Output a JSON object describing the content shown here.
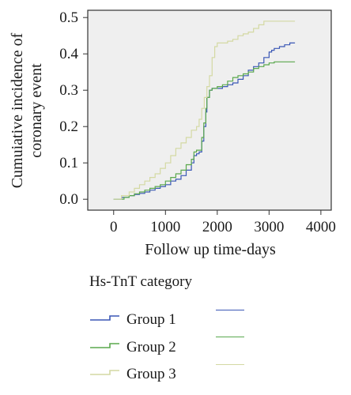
{
  "chart_data": {
    "type": "line",
    "xlabel": "Follow up time-days",
    "ylabel_lines": [
      "Cumuiative incidence of",
      "coronary event"
    ],
    "xlim": [
      -500,
      4200
    ],
    "ylim": [
      -0.03,
      0.52
    ],
    "xticks": [
      0,
      1000,
      2000,
      3000,
      4000
    ],
    "yticks": [
      0.0,
      0.1,
      0.2,
      0.3,
      0.4,
      0.5
    ],
    "ytick_labels": [
      "0.0",
      "0.1",
      "0.2",
      "0.3",
      "0.4",
      "0.5"
    ],
    "plot_background": "#efefef",
    "grid": false,
    "legend": {
      "title": "Hs-TnT category",
      "placement": "below"
    },
    "series": [
      {
        "name": "Group 1",
        "color": "#3a57b5",
        "x": [
          0,
          150,
          300,
          400,
          500,
          600,
          700,
          800,
          900,
          1000,
          1100,
          1200,
          1300,
          1400,
          1500,
          1550,
          1600,
          1650,
          1700,
          1740,
          1780,
          1800,
          1850,
          1900,
          2000,
          2100,
          2200,
          2300,
          2400,
          2500,
          2600,
          2700,
          2800,
          2900,
          3000,
          3050,
          3100,
          3200,
          3300,
          3400,
          3500
        ],
        "y": [
          0.0,
          0.005,
          0.01,
          0.013,
          0.016,
          0.02,
          0.025,
          0.03,
          0.035,
          0.04,
          0.05,
          0.055,
          0.065,
          0.08,
          0.1,
          0.12,
          0.125,
          0.13,
          0.16,
          0.2,
          0.24,
          0.28,
          0.3,
          0.305,
          0.305,
          0.31,
          0.315,
          0.32,
          0.33,
          0.34,
          0.355,
          0.365,
          0.375,
          0.39,
          0.405,
          0.41,
          0.415,
          0.42,
          0.425,
          0.43,
          0.43
        ]
      },
      {
        "name": "Group 2",
        "color": "#5aa84d",
        "x": [
          0,
          200,
          300,
          400,
          500,
          600,
          700,
          800,
          900,
          1000,
          1100,
          1200,
          1300,
          1400,
          1500,
          1550,
          1600,
          1650,
          1700,
          1740,
          1780,
          1800,
          1850,
          1900,
          2000,
          2100,
          2200,
          2300,
          2400,
          2500,
          2600,
          2700,
          2800,
          2900,
          3000,
          3100,
          3200,
          3300,
          3500
        ],
        "y": [
          0.0,
          0.005,
          0.01,
          0.015,
          0.02,
          0.025,
          0.03,
          0.035,
          0.04,
          0.05,
          0.06,
          0.07,
          0.08,
          0.095,
          0.11,
          0.13,
          0.135,
          0.135,
          0.17,
          0.21,
          0.25,
          0.28,
          0.3,
          0.305,
          0.31,
          0.315,
          0.325,
          0.335,
          0.34,
          0.345,
          0.35,
          0.36,
          0.365,
          0.37,
          0.375,
          0.378,
          0.378,
          0.378,
          0.378
        ]
      },
      {
        "name": "Group 3",
        "color": "#d4d9a3",
        "x": [
          0,
          150,
          300,
          400,
          500,
          600,
          700,
          800,
          900,
          1000,
          1100,
          1200,
          1300,
          1400,
          1500,
          1600,
          1650,
          1700,
          1750,
          1800,
          1850,
          1900,
          1950,
          2000,
          2100,
          2200,
          2300,
          2400,
          2500,
          2600,
          2700,
          2800,
          2900,
          3000,
          3100,
          3200,
          3300,
          3500
        ],
        "y": [
          0.0,
          0.01,
          0.02,
          0.03,
          0.04,
          0.05,
          0.06,
          0.07,
          0.085,
          0.1,
          0.12,
          0.14,
          0.155,
          0.17,
          0.19,
          0.2,
          0.22,
          0.25,
          0.28,
          0.31,
          0.34,
          0.39,
          0.42,
          0.43,
          0.43,
          0.435,
          0.44,
          0.45,
          0.455,
          0.46,
          0.47,
          0.48,
          0.49,
          0.49,
          0.49,
          0.49,
          0.49,
          0.49
        ]
      }
    ]
  }
}
